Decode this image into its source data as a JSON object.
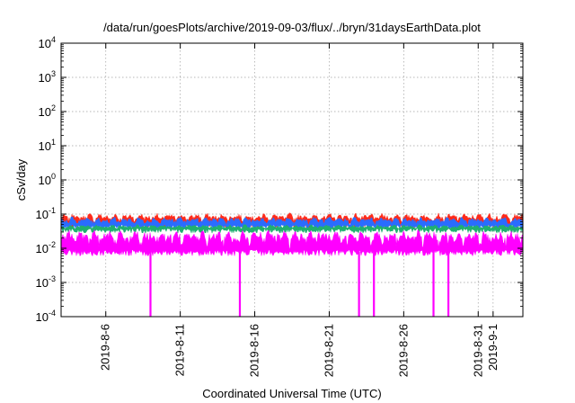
{
  "chart_data": {
    "type": "area",
    "title": "/data/run/goesPlots/archive/2019-09-03/flux/../bryn/31daysEarthData.plot",
    "xlabel": "Coordinated Universal Time (UTC)",
    "ylabel": "cSv/day",
    "y_scale": "log",
    "ylim": [
      0.0001,
      10000
    ],
    "y_ticks": [
      {
        "exp": "-4",
        "value": 0.0001
      },
      {
        "exp": "-3",
        "value": 0.001
      },
      {
        "exp": "-2",
        "value": 0.01
      },
      {
        "exp": "-1",
        "value": 0.1
      },
      {
        "exp": "0",
        "value": 1
      },
      {
        "exp": "1",
        "value": 10
      },
      {
        "exp": "2",
        "value": 100
      },
      {
        "exp": "3",
        "value": 1000
      },
      {
        "exp": "4",
        "value": 10000
      }
    ],
    "y_tick_base": "10",
    "xlim": [
      "2019-08-03",
      "2019-09-03"
    ],
    "x_ticks": [
      "2019-8-6",
      "2019-8-11",
      "2019-8-16",
      "2019-8-21",
      "2019-8-26",
      "2019-8-31",
      "2019-9-1"
    ],
    "grid": true,
    "series": [
      {
        "color": "#ff2a1a",
        "typical_peak": 0.11,
        "typical_base": 0.05
      },
      {
        "color": "#2a6cff",
        "typical_peak": 0.085,
        "typical_base": 0.045
      },
      {
        "color": "#20b070",
        "typical_peak": 0.05,
        "typical_base": 0.035
      },
      {
        "color": "#ff00ff",
        "typical_peak": 0.035,
        "typical_base": 0.008
      }
    ],
    "dropouts": [
      "2019-08-09",
      "2019-08-15",
      "2019-08-23",
      "2019-08-24",
      "2019-08-28",
      "2019-08-29"
    ],
    "dropout_value": 0.0001
  }
}
